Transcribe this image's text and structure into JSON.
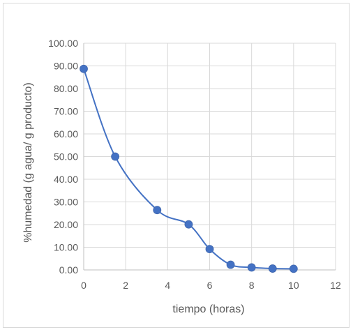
{
  "chart_data": {
    "type": "scatter",
    "title": "",
    "xlabel": "tiempo (horas)",
    "ylabel": "%humedad (g agua/ g producto)",
    "xlim": [
      0,
      12
    ],
    "ylim": [
      0,
      100
    ],
    "xticks": [
      0,
      2,
      4,
      6,
      8,
      10,
      12
    ],
    "yticks": [
      0,
      10,
      20,
      30,
      40,
      50,
      60,
      70,
      80,
      90,
      100
    ],
    "xtick_labels": [
      "0",
      "2",
      "4",
      "6",
      "8",
      "10",
      "12"
    ],
    "ytick_labels": [
      "0.00",
      "10.00",
      "20.00",
      "30.00",
      "40.00",
      "50.00",
      "60.00",
      "70.00",
      "80.00",
      "90.00",
      "100.00"
    ],
    "grid": true,
    "smooth_line": true,
    "series": [
      {
        "color": "#4472c4",
        "x": [
          0,
          1.5,
          3.5,
          5,
          6,
          7,
          8,
          9,
          10
        ],
        "y": [
          88.7,
          50.0,
          26.4,
          20.1,
          9.2,
          2.3,
          1.1,
          0.6,
          0.5
        ]
      }
    ]
  }
}
